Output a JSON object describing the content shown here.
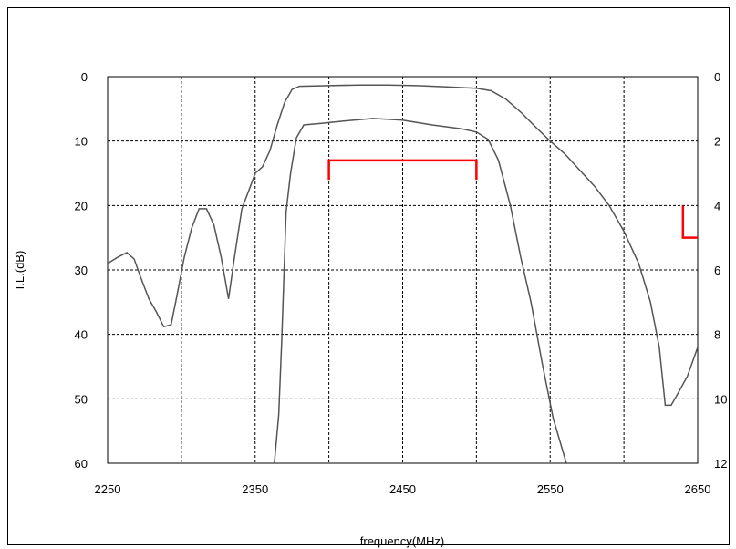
{
  "chart_data": {
    "type": "line",
    "xlabel": "frequency(MHz)",
    "ylabel": "I.L.(dB)",
    "x_ticks": [
      2250,
      2350,
      2450,
      2550,
      2650
    ],
    "y_left_ticks": [
      0,
      10,
      20,
      30,
      40,
      50,
      60
    ],
    "y_right_ticks": [
      0,
      2,
      4,
      6,
      8,
      10,
      12
    ],
    "xlim": [
      2250,
      2650
    ],
    "ylim_left": [
      0,
      60
    ],
    "ylim_right": [
      0,
      12
    ],
    "y_inverted": true,
    "grid": true,
    "series": [
      {
        "axis": "left",
        "color": "#555555",
        "points": [
          [
            2250,
            29
          ],
          [
            2257,
            28
          ],
          [
            2263,
            27.3
          ],
          [
            2268,
            28.3
          ],
          [
            2273,
            31.5
          ],
          [
            2278,
            34.5
          ],
          [
            2283,
            36.5
          ],
          [
            2288,
            38.8
          ],
          [
            2293,
            38.5
          ],
          [
            2297,
            34
          ],
          [
            2302,
            28
          ],
          [
            2307,
            23.5
          ],
          [
            2312,
            20.5
          ],
          [
            2317,
            20.5
          ],
          [
            2322,
            23
          ],
          [
            2327,
            28
          ],
          [
            2332,
            34.5
          ],
          [
            2336,
            28
          ],
          [
            2341,
            20.5
          ],
          [
            2346,
            17.5
          ],
          [
            2350,
            15
          ],
          [
            2355,
            14
          ],
          [
            2360,
            11.5
          ],
          [
            2365,
            7.5
          ],
          [
            2370,
            4
          ],
          [
            2375,
            2
          ],
          [
            2380,
            1.5
          ],
          [
            2400,
            1.4
          ],
          [
            2420,
            1.3
          ],
          [
            2440,
            1.3
          ],
          [
            2460,
            1.4
          ],
          [
            2480,
            1.6
          ],
          [
            2500,
            1.8
          ],
          [
            2510,
            2.2
          ],
          [
            2520,
            3.5
          ],
          [
            2530,
            5.5
          ],
          [
            2540,
            7.8
          ],
          [
            2550,
            10
          ],
          [
            2560,
            12
          ],
          [
            2570,
            14.5
          ],
          [
            2580,
            17
          ],
          [
            2590,
            20
          ],
          [
            2600,
            24
          ],
          [
            2610,
            29
          ],
          [
            2618,
            35
          ],
          [
            2624,
            42
          ],
          [
            2628,
            51
          ],
          [
            2632,
            51
          ],
          [
            2637,
            49
          ],
          [
            2643,
            46.5
          ],
          [
            2650,
            42
          ]
        ]
      },
      {
        "axis": "right",
        "color": "#555555",
        "points": [
          [
            2363,
            12
          ],
          [
            2366,
            10.5
          ],
          [
            2368,
            8.2
          ],
          [
            2371,
            4.2
          ],
          [
            2374,
            3
          ],
          [
            2378,
            1.9
          ],
          [
            2383,
            1.5
          ],
          [
            2395,
            1.45
          ],
          [
            2410,
            1.38
          ],
          [
            2430,
            1.3
          ],
          [
            2450,
            1.35
          ],
          [
            2470,
            1.5
          ],
          [
            2490,
            1.62
          ],
          [
            2500,
            1.72
          ],
          [
            2508,
            1.95
          ],
          [
            2515,
            2.6
          ],
          [
            2523,
            4
          ],
          [
            2530,
            5.6
          ],
          [
            2537,
            7
          ],
          [
            2545,
            9
          ],
          [
            2552,
            10.6
          ],
          [
            2561,
            12
          ]
        ]
      }
    ],
    "markers": [
      {
        "color": "#ff0000",
        "x1": 2400,
        "x2": 2500,
        "y": 13,
        "drop": 3,
        "axis": "left"
      },
      {
        "color": "#ff0000",
        "x1": 2640,
        "x2": 2650,
        "y": 20,
        "y2": 25,
        "axis": "left"
      }
    ]
  }
}
